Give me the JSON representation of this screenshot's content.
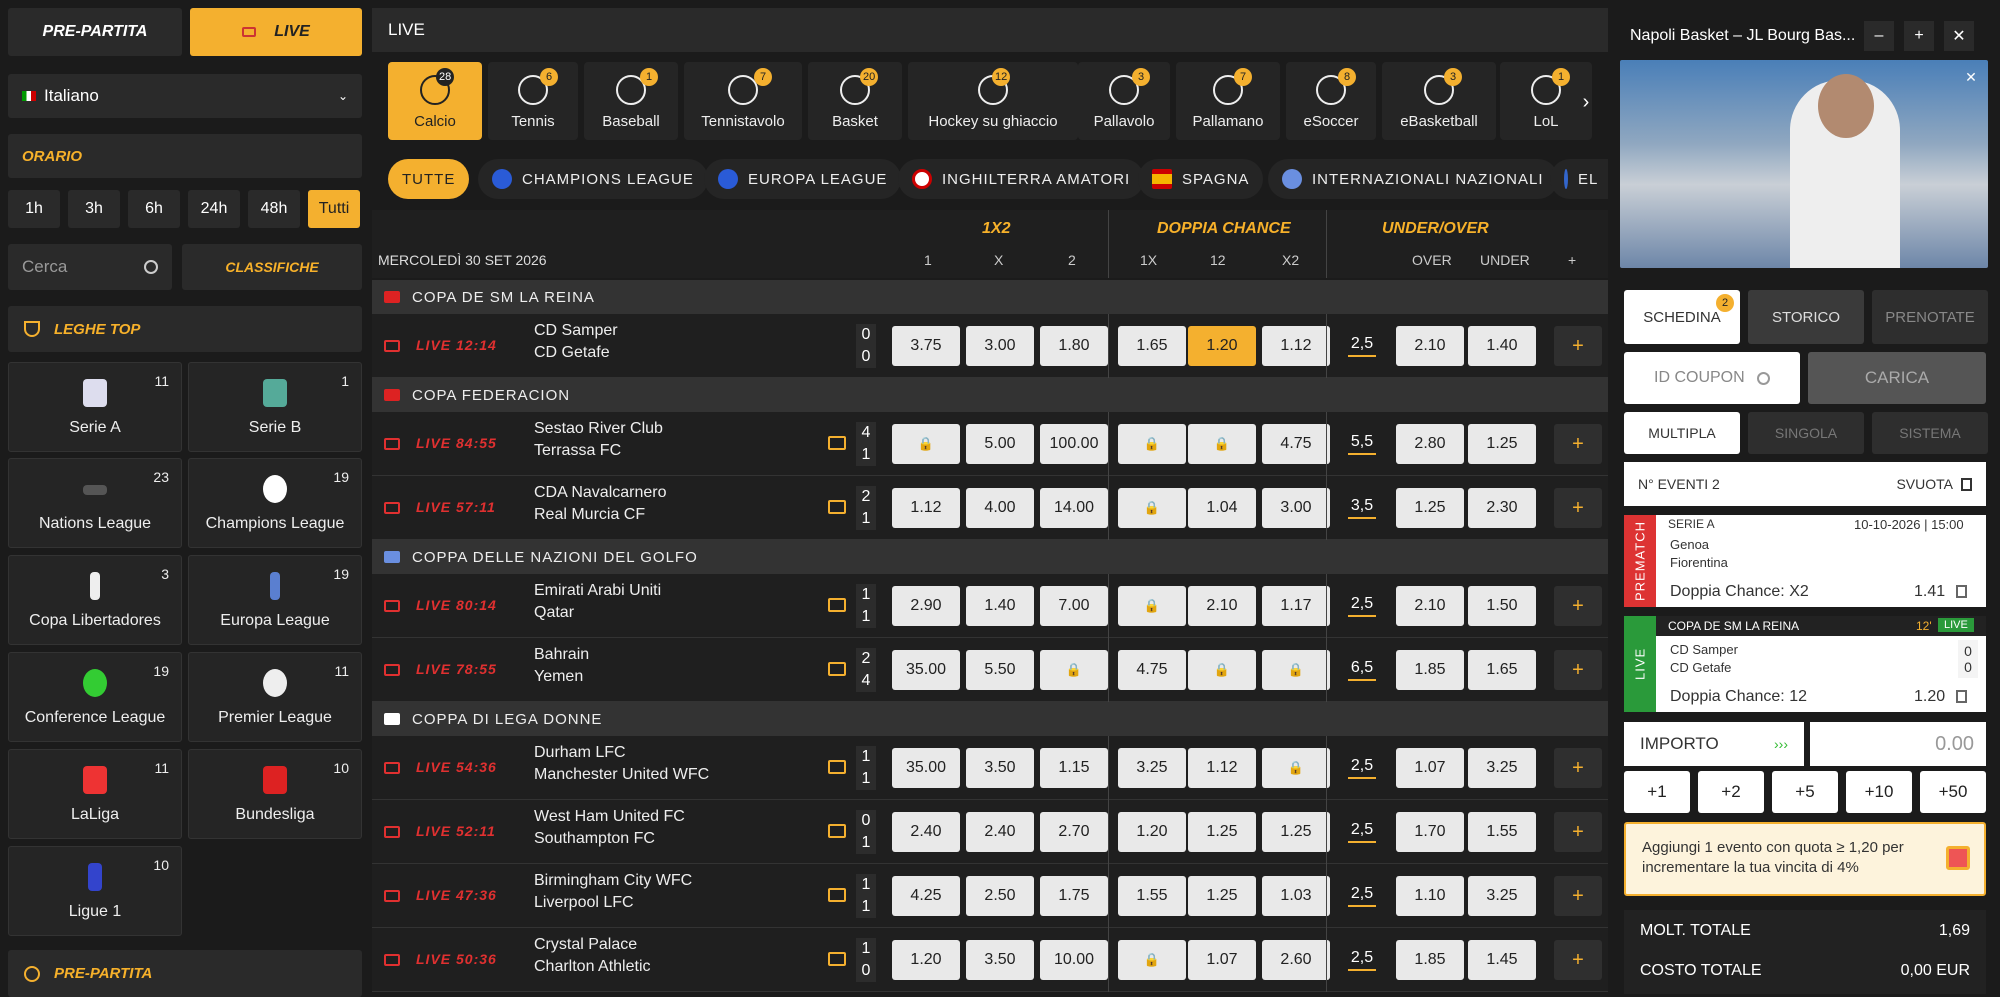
{
  "top_tabs": {
    "pre": "PRE-PARTITA",
    "live": "LIVE"
  },
  "language": "Italiano",
  "orario": {
    "title": "ORARIO",
    "opts": [
      "1h",
      "3h",
      "6h",
      "24h",
      "48h",
      "Tutti"
    ]
  },
  "search": {
    "placeholder": "Cerca"
  },
  "classifiche": "CLASSIFICHE",
  "leghe_top": "LEGHE TOP",
  "leagues": [
    {
      "name": "Serie A",
      "count": "11"
    },
    {
      "name": "Serie B",
      "count": "1"
    },
    {
      "name": "Nations League",
      "count": "23"
    },
    {
      "name": "Champions League",
      "count": "19"
    },
    {
      "name": "Copa Libertadores",
      "count": "3"
    },
    {
      "name": "Europa League",
      "count": "19"
    },
    {
      "name": "Conference League",
      "count": "19"
    },
    {
      "name": "Premier League",
      "count": "11"
    },
    {
      "name": "LaLiga",
      "count": "11"
    },
    {
      "name": "Bundesliga",
      "count": "10"
    },
    {
      "name": "Ligue 1",
      "count": "10"
    }
  ],
  "pre_partita_footer": "PRE-PARTITA",
  "main_title": "LIVE",
  "sports": [
    {
      "name": "Calcio",
      "count": "28"
    },
    {
      "name": "Tennis",
      "count": "6"
    },
    {
      "name": "Baseball",
      "count": "1"
    },
    {
      "name": "Tennistavolo",
      "count": "7"
    },
    {
      "name": "Basket",
      "count": "20"
    },
    {
      "name": "Hockey su ghiaccio",
      "count": "12"
    },
    {
      "name": "Pallavolo",
      "count": "3"
    },
    {
      "name": "Pallamano",
      "count": "7"
    },
    {
      "name": "eSoccer",
      "count": "8"
    },
    {
      "name": "eBasketball",
      "count": "3"
    },
    {
      "name": "LoL",
      "count": "1"
    }
  ],
  "competitions": [
    "TUTTE",
    "CHAMPIONS LEAGUE",
    "EUROPA LEAGUE",
    "INGHILTERRA AMATORI",
    "SPAGNA",
    "INTERNAZIONALI NAZIONALI",
    "EL"
  ],
  "market_headers": {
    "g1": "1X2",
    "g2": "DOPPIA CHANCE",
    "g3": "UNDER/OVER",
    "date": "MERCOLEDÌ 30 SET 2026",
    "c1": "1",
    "cx": "X",
    "c2": "2",
    "c1x": "1X",
    "c12": "12",
    "cx2": "X2",
    "over": "OVER",
    "under": "UNDER",
    "plus": "+"
  },
  "sections": [
    {
      "name": "COPA DE SM LA REINA",
      "matches": [
        {
          "time": "LIVE  12:14",
          "home": "CD Samper",
          "away": "CD Getafe",
          "s1": "0",
          "s2": "0",
          "odds": [
            "3.75",
            "3.00",
            "1.80",
            "1.65",
            "1.20",
            "1.12"
          ],
          "line": "2,5",
          "over": "2.10",
          "under": "1.40"
        }
      ]
    },
    {
      "name": "COPA FEDERACION",
      "matches": [
        {
          "time": "LIVE  84:55",
          "home": "Sestao River Club",
          "away": "Terrassa FC",
          "s1": "4",
          "s2": "1",
          "odds": [
            "",
            "5.00",
            "100.00",
            "",
            "",
            "4.75"
          ],
          "line": "5,5",
          "over": "2.80",
          "under": "1.25"
        },
        {
          "time": "LIVE  57:11",
          "home": "CDA Navalcarnero",
          "away": "Real Murcia CF",
          "s1": "2",
          "s2": "1",
          "odds": [
            "1.12",
            "4.00",
            "14.00",
            "",
            "1.04",
            "3.00"
          ],
          "line": "3,5",
          "over": "1.25",
          "under": "2.30"
        }
      ]
    },
    {
      "name": "COPPA DELLE NAZIONI DEL GOLFO",
      "matches": [
        {
          "time": "LIVE  80:14",
          "home": "Emirati Arabi Uniti",
          "away": "Qatar",
          "s1": "1",
          "s2": "1",
          "odds": [
            "2.90",
            "1.40",
            "7.00",
            "",
            "2.10",
            "1.17"
          ],
          "line": "2,5",
          "over": "2.10",
          "under": "1.50"
        },
        {
          "time": "LIVE  78:55",
          "home": "Bahrain",
          "away": "Yemen",
          "s1": "2",
          "s2": "4",
          "odds": [
            "35.00",
            "5.50",
            "",
            "4.75",
            "",
            ""
          ],
          "line": "6,5",
          "over": "1.85",
          "under": "1.65"
        }
      ]
    },
    {
      "name": "COPPA DI LEGA DONNE",
      "matches": [
        {
          "time": "LIVE  54:36",
          "home": "Durham LFC",
          "away": "Manchester United WFC",
          "s1": "1",
          "s2": "1",
          "odds": [
            "35.00",
            "3.50",
            "1.15",
            "3.25",
            "1.12",
            ""
          ],
          "line": "2,5",
          "over": "1.07",
          "under": "3.25"
        },
        {
          "time": "LIVE  52:11",
          "home": "West Ham United FC",
          "away": "Southampton FC",
          "s1": "0",
          "s2": "1",
          "odds": [
            "2.40",
            "2.40",
            "2.70",
            "1.20",
            "1.25",
            "1.25"
          ],
          "line": "2,5",
          "over": "1.70",
          "under": "1.55"
        },
        {
          "time": "LIVE  47:36",
          "home": "Birmingham City WFC",
          "away": "Liverpool LFC",
          "s1": "1",
          "s2": "1",
          "odds": [
            "4.25",
            "2.50",
            "1.75",
            "1.55",
            "1.25",
            "1.03"
          ],
          "line": "2,5",
          "over": "1.10",
          "under": "3.25"
        },
        {
          "time": "LIVE  50:36",
          "home": "Crystal Palace",
          "away": "Charlton Athletic",
          "s1": "1",
          "s2": "0",
          "odds": [
            "1.20",
            "3.50",
            "10.00",
            "",
            "1.07",
            "2.60"
          ],
          "line": "2,5",
          "over": "1.85",
          "under": "1.45"
        }
      ]
    }
  ],
  "video": {
    "title": "Napoli Basket – JL Bourg Bas..."
  },
  "slip": {
    "tabs": [
      "SCHEDINA",
      "STORICO",
      "PRENOTATE"
    ],
    "schedina_count": "2",
    "coupon_placeholder": "ID COUPON",
    "carica": "CARICA",
    "modes": [
      "MULTIPLA",
      "SINGOLA",
      "SISTEMA"
    ],
    "n_eventi": "N° EVENTI 2",
    "svuota": "SVUOTA",
    "bets": [
      {
        "side": "PREMATCH",
        "league": "SERIE A",
        "date": "10-10-2026 | 15:00",
        "home": "Genoa",
        "away": "Fiorentina",
        "market": "Doppia Chance:  X2",
        "odd": "1.41"
      },
      {
        "side": "LIVE",
        "league": "COPA DE SM LA REINA",
        "minute": "12'",
        "badge": "LIVE",
        "home": "CD Samper",
        "away": "CD Getafe",
        "sh": "0",
        "sa": "0",
        "market": "Doppia Chance:  12",
        "odd": "1.20"
      }
    ],
    "importo": "IMPORTO",
    "amount": "0.00",
    "quick": [
      "+1",
      "+2",
      "+5",
      "+10",
      "+50"
    ],
    "promo": "Aggiungi 1 evento con quota ≥ 1,20 per incrementare la tua vincita di 4%",
    "molt_label": "MOLT. TOTALE",
    "molt": "1,69",
    "costo_label": "COSTO TOTALE",
    "costo": "0,00 EUR"
  }
}
